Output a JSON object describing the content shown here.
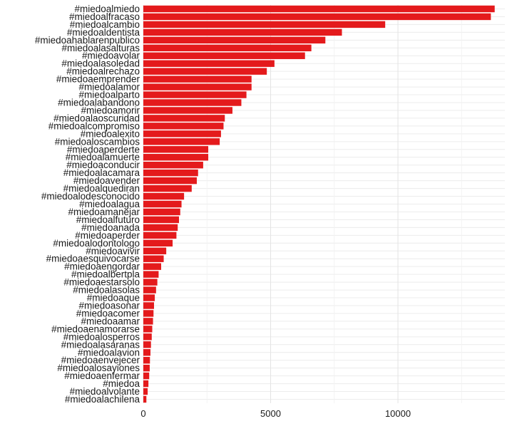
{
  "chart_data": {
    "type": "bar",
    "orientation": "horizontal",
    "title": "",
    "xlabel": "",
    "ylabel": "",
    "bar_color": "#e41a1c",
    "grid": true,
    "xlim": [
      0,
      14200
    ],
    "xticks": [
      0,
      5000,
      10000
    ],
    "xtick_labels": [
      "0",
      "5000",
      "10000"
    ],
    "categories": [
      "#miedoalmiedo",
      "#miedoalfracaso",
      "#miedoalcambio",
      "#miedoaldentista",
      "#miedoahablarenpublico",
      "#miedoalasalturas",
      "#miedoavolar",
      "#miedoalasoledad",
      "#miedoalrechazo",
      "#miedoaemprender",
      "#miedoalamor",
      "#miedoalparto",
      "#miedoalabandono",
      "#miedoamorir",
      "#miedoalaoscuridad",
      "#miedoalcompromiso",
      "#miedoalexito",
      "#miedoaloscambios",
      "#miedoaperderte",
      "#miedoalamuerte",
      "#miedoaconducir",
      "#miedoalacamara",
      "#miedoavender",
      "#miedoalquediran",
      "#miedoalodesconocido",
      "#miedoalagua",
      "#miedoamanejar",
      "#miedoalfuturo",
      "#miedoanada",
      "#miedoaperder",
      "#miedoalodontologo",
      "#miedoavivir",
      "#miedoaesquivocarse",
      "#miedoaengordar",
      "#miedoalbertpla",
      "#miedoaestarsolo",
      "#miedoalasolas",
      "#miedoaque",
      "#miedoasonar",
      "#miedoacomer",
      "#miedoaamar",
      "#miedoaenamorarse",
      "#miedoalosperros",
      "#miedoalasaranas",
      "#miedoalavion",
      "#miedoaenvejecer",
      "#miedoalosayiones",
      "#miedoaenfermar",
      "#miedoa",
      "#miedoalvolante",
      "#miedoalachilena"
    ],
    "values": [
      13800,
      13650,
      9500,
      7800,
      7150,
      6600,
      6350,
      5150,
      4850,
      4250,
      4250,
      4050,
      3850,
      3500,
      3200,
      3150,
      3050,
      3000,
      2550,
      2550,
      2350,
      2150,
      2100,
      1900,
      1600,
      1500,
      1450,
      1400,
      1350,
      1300,
      1150,
      900,
      800,
      700,
      600,
      550,
      500,
      450,
      420,
      400,
      380,
      350,
      330,
      300,
      280,
      260,
      250,
      230,
      200,
      170,
      120
    ]
  }
}
